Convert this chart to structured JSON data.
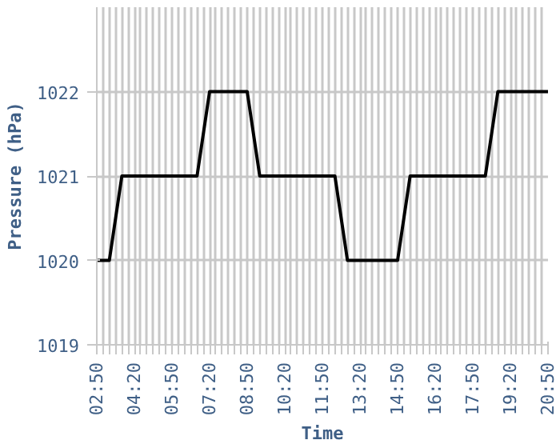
{
  "chart_data": {
    "type": "line",
    "xlabel": "Time",
    "ylabel": "Pressure (hPa)",
    "x": [
      2.8333,
      3.3333,
      3.8333,
      6.8333,
      7.3333,
      8.8333,
      9.3333,
      12.3333,
      12.8333,
      14.8333,
      15.3333,
      18.3333,
      18.8333,
      20.8333
    ],
    "series": [
      {
        "color": "#000000",
        "values": [
          1020,
          1020,
          1021,
          1021,
          1022,
          1022,
          1021,
          1021,
          1020,
          1020,
          1021,
          1021,
          1022,
          1022
        ]
      }
    ],
    "xlim": [
      2.8333,
      20.8333
    ],
    "xticks": [
      {
        "value": 2.8333,
        "label": "02:50"
      },
      {
        "value": 3.0833,
        "label": null
      },
      {
        "value": 3.3333,
        "label": null
      },
      {
        "value": 3.5833,
        "label": null
      },
      {
        "value": 3.8333,
        "label": null
      },
      {
        "value": 4.0833,
        "label": null
      },
      {
        "value": 4.3333,
        "label": "04:20"
      },
      {
        "value": 4.5833,
        "label": null
      },
      {
        "value": 4.8333,
        "label": null
      },
      {
        "value": 5.0833,
        "label": null
      },
      {
        "value": 5.3333,
        "label": null
      },
      {
        "value": 5.5833,
        "label": null
      },
      {
        "value": 5.8333,
        "label": "05:50"
      },
      {
        "value": 6.0833,
        "label": null
      },
      {
        "value": 6.3333,
        "label": null
      },
      {
        "value": 6.5833,
        "label": null
      },
      {
        "value": 6.8333,
        "label": null
      },
      {
        "value": 7.0833,
        "label": null
      },
      {
        "value": 7.3333,
        "label": "07:20"
      },
      {
        "value": 7.5833,
        "label": null
      },
      {
        "value": 7.8333,
        "label": null
      },
      {
        "value": 8.0833,
        "label": null
      },
      {
        "value": 8.3333,
        "label": null
      },
      {
        "value": 8.5833,
        "label": null
      },
      {
        "value": 8.8333,
        "label": "08:50"
      },
      {
        "value": 9.0833,
        "label": null
      },
      {
        "value": 9.3333,
        "label": null
      },
      {
        "value": 9.5833,
        "label": null
      },
      {
        "value": 9.8333,
        "label": null
      },
      {
        "value": 10.0833,
        "label": null
      },
      {
        "value": 10.3333,
        "label": "10:20"
      },
      {
        "value": 10.5833,
        "label": null
      },
      {
        "value": 10.8333,
        "label": null
      },
      {
        "value": 11.0833,
        "label": null
      },
      {
        "value": 11.3333,
        "label": null
      },
      {
        "value": 11.5833,
        "label": null
      },
      {
        "value": 11.8333,
        "label": "11:50"
      },
      {
        "value": 12.0833,
        "label": null
      },
      {
        "value": 12.3333,
        "label": null
      },
      {
        "value": 12.5833,
        "label": null
      },
      {
        "value": 12.8333,
        "label": null
      },
      {
        "value": 13.0833,
        "label": null
      },
      {
        "value": 13.3333,
        "label": "13:20"
      },
      {
        "value": 13.5833,
        "label": null
      },
      {
        "value": 13.8333,
        "label": null
      },
      {
        "value": 14.0833,
        "label": null
      },
      {
        "value": 14.3333,
        "label": null
      },
      {
        "value": 14.5833,
        "label": null
      },
      {
        "value": 14.8333,
        "label": "14:50"
      },
      {
        "value": 15.0833,
        "label": null
      },
      {
        "value": 15.3333,
        "label": null
      },
      {
        "value": 15.5833,
        "label": null
      },
      {
        "value": 15.8333,
        "label": null
      },
      {
        "value": 16.0833,
        "label": null
      },
      {
        "value": 16.3333,
        "label": "16:20"
      },
      {
        "value": 16.5833,
        "label": null
      },
      {
        "value": 16.8333,
        "label": null
      },
      {
        "value": 17.0833,
        "label": null
      },
      {
        "value": 17.3333,
        "label": null
      },
      {
        "value": 17.5833,
        "label": null
      },
      {
        "value": 17.8333,
        "label": "17:50"
      },
      {
        "value": 18.0833,
        "label": null
      },
      {
        "value": 18.3333,
        "label": null
      },
      {
        "value": 18.5833,
        "label": null
      },
      {
        "value": 18.8333,
        "label": null
      },
      {
        "value": 19.0833,
        "label": null
      },
      {
        "value": 19.3333,
        "label": "19:20"
      },
      {
        "value": 19.5833,
        "label": null
      },
      {
        "value": 19.8333,
        "label": null
      },
      {
        "value": 20.0833,
        "label": null
      },
      {
        "value": 20.3333,
        "label": null
      },
      {
        "value": 20.5833,
        "label": null
      },
      {
        "value": 20.8333,
        "label": "20:50"
      }
    ],
    "ylim": [
      1019,
      1023
    ],
    "yticks": [
      1019,
      1020,
      1021,
      1022
    ],
    "grid": true,
    "line_style": "solid",
    "marker": "none"
  }
}
